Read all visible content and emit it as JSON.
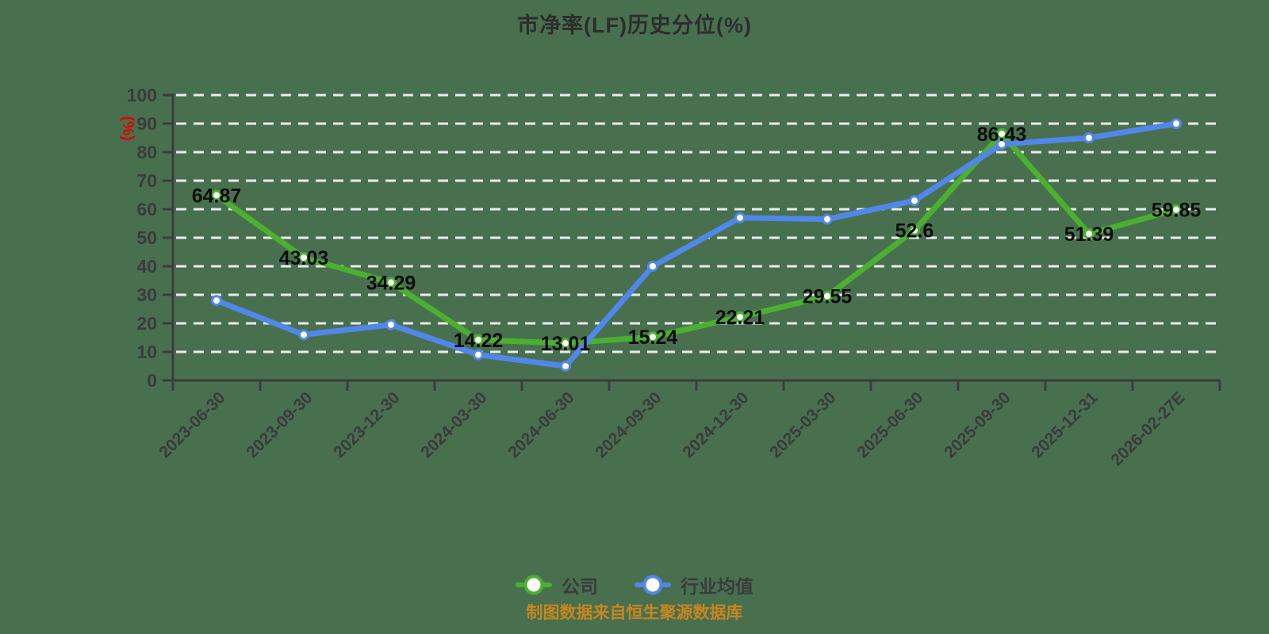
{
  "title": "市净率(LF)历史分位(%)",
  "footer_note": "制图数据来自恒生聚源数据库",
  "colors": {
    "background": "#48704f",
    "grid": "#ebebeb",
    "axis": "#3c3c3c",
    "tick_text": "#3b3b3b",
    "title_text": "#2d2d2d",
    "data_label": "#0d0d0d",
    "y_unit_label": "#e60000",
    "footer_text": "#c7861f",
    "legend_text": "#3b3b3b",
    "marker_fill": "#ffffff",
    "company": "#4bb02f",
    "industry": "#5187ea"
  },
  "legend": {
    "items": [
      {
        "label": "公司"
      },
      {
        "label": "行业均值"
      }
    ]
  },
  "chart_data": {
    "type": "line",
    "title": "市净率(LF)历史分位(%)",
    "xlabel": "",
    "ylabel": "(%)",
    "ylim": [
      0,
      100
    ],
    "y_step": 10,
    "grid": "horizontal-dashed",
    "legend_position": "bottom",
    "categories": [
      "2023-06-30",
      "2023-09-30",
      "2023-12-30",
      "2024-03-30",
      "2024-06-30",
      "2024-09-30",
      "2024-12-30",
      "2025-03-30",
      "2025-06-30",
      "2025-09-30",
      "2025-12-31",
      "2026-02-27E"
    ],
    "series": [
      {
        "name": "公司",
        "color": "#4bb02f",
        "values": [
          64.87,
          43.03,
          34.29,
          14.22,
          13.01,
          15.24,
          22.21,
          29.55,
          52.6,
          86.43,
          51.39,
          59.85
        ],
        "labels": [
          "64.87",
          "43.03",
          "34.29",
          "14.22",
          "13.01",
          "15.24",
          "22.21",
          "29.55",
          "52.6",
          "86.43",
          "51.39",
          "59.85"
        ],
        "labels_shown": true
      },
      {
        "name": "行业均值",
        "color": "#5187ea",
        "values": [
          28,
          16,
          19.5,
          9,
          5,
          40,
          57,
          56.5,
          63,
          82.8,
          85,
          90
        ],
        "labels_shown": false
      }
    ]
  }
}
